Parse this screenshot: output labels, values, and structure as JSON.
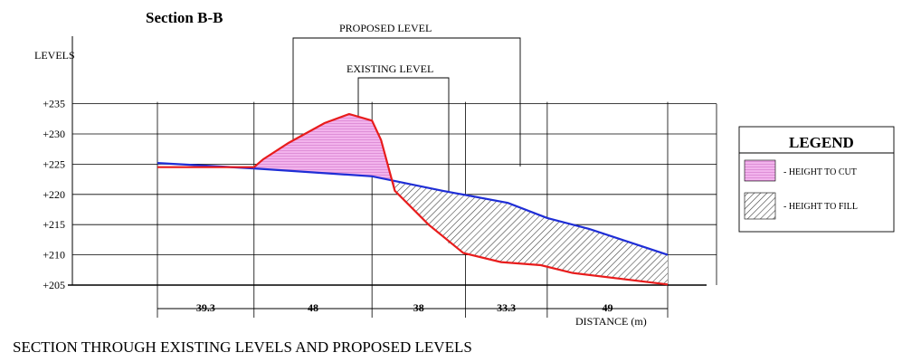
{
  "title": "Section B-B",
  "y_axis_label": "LEVELS",
  "y_ticks": [
    "+235",
    "+230",
    "+225",
    "+220",
    "+215",
    "+210",
    "+205"
  ],
  "callouts": {
    "proposed": "PROPOSED LEVEL",
    "existing": "EXISTING LEVEL"
  },
  "distances": [
    "39.3",
    "48",
    "38",
    "33.3",
    "49"
  ],
  "x_axis_label": "DISTANCE (m)",
  "legend": {
    "title": "LEGEND",
    "items": [
      {
        "label": "- HEIGHT TO CUT",
        "pattern": "cut"
      },
      {
        "label": "- HEIGHT TO FILL",
        "pattern": "fill"
      }
    ]
  },
  "caption": "SECTION THROUGH EXISTING LEVELS AND PROPOSED LEVELS",
  "colors": {
    "existing_line": "#e81c1c",
    "proposed_line": "#1f2ed6",
    "cut_fill": "#f2b3ec",
    "fill_hatch": "#444444",
    "grid": "#000000"
  },
  "chart_data": {
    "type": "area",
    "xlabel": "DISTANCE (m)",
    "ylabel": "LEVELS",
    "ylim": [
      205,
      235
    ],
    "grid": true,
    "legend_position": "right",
    "segment_lengths": [
      39.3,
      48,
      38,
      33.3,
      49
    ],
    "series": [
      {
        "name": "EXISTING LEVEL",
        "color": "#e81c1c",
        "x": [
          0,
          39.3,
          43.0,
          53.3,
          68.0,
          78.0,
          87.3,
          91.0,
          96.6,
          110.3,
          124.5,
          139.8,
          156.0,
          168.8,
          207.6
        ],
        "y": [
          224.5,
          224.5,
          225.8,
          228.5,
          231.8,
          233.3,
          232.2,
          229.0,
          220.6,
          215.0,
          210.3,
          208.8,
          208.3,
          207.0,
          205.1
        ]
      },
      {
        "name": "PROPOSED LEVEL",
        "color": "#1f2ed6",
        "x": [
          0,
          39.3,
          87.3,
          116.0,
          142.6,
          158.6,
          175.6,
          207.6
        ],
        "y": [
          225.2,
          224.3,
          223.0,
          220.6,
          218.6,
          216.1,
          214.3,
          210.0
        ]
      }
    ]
  }
}
